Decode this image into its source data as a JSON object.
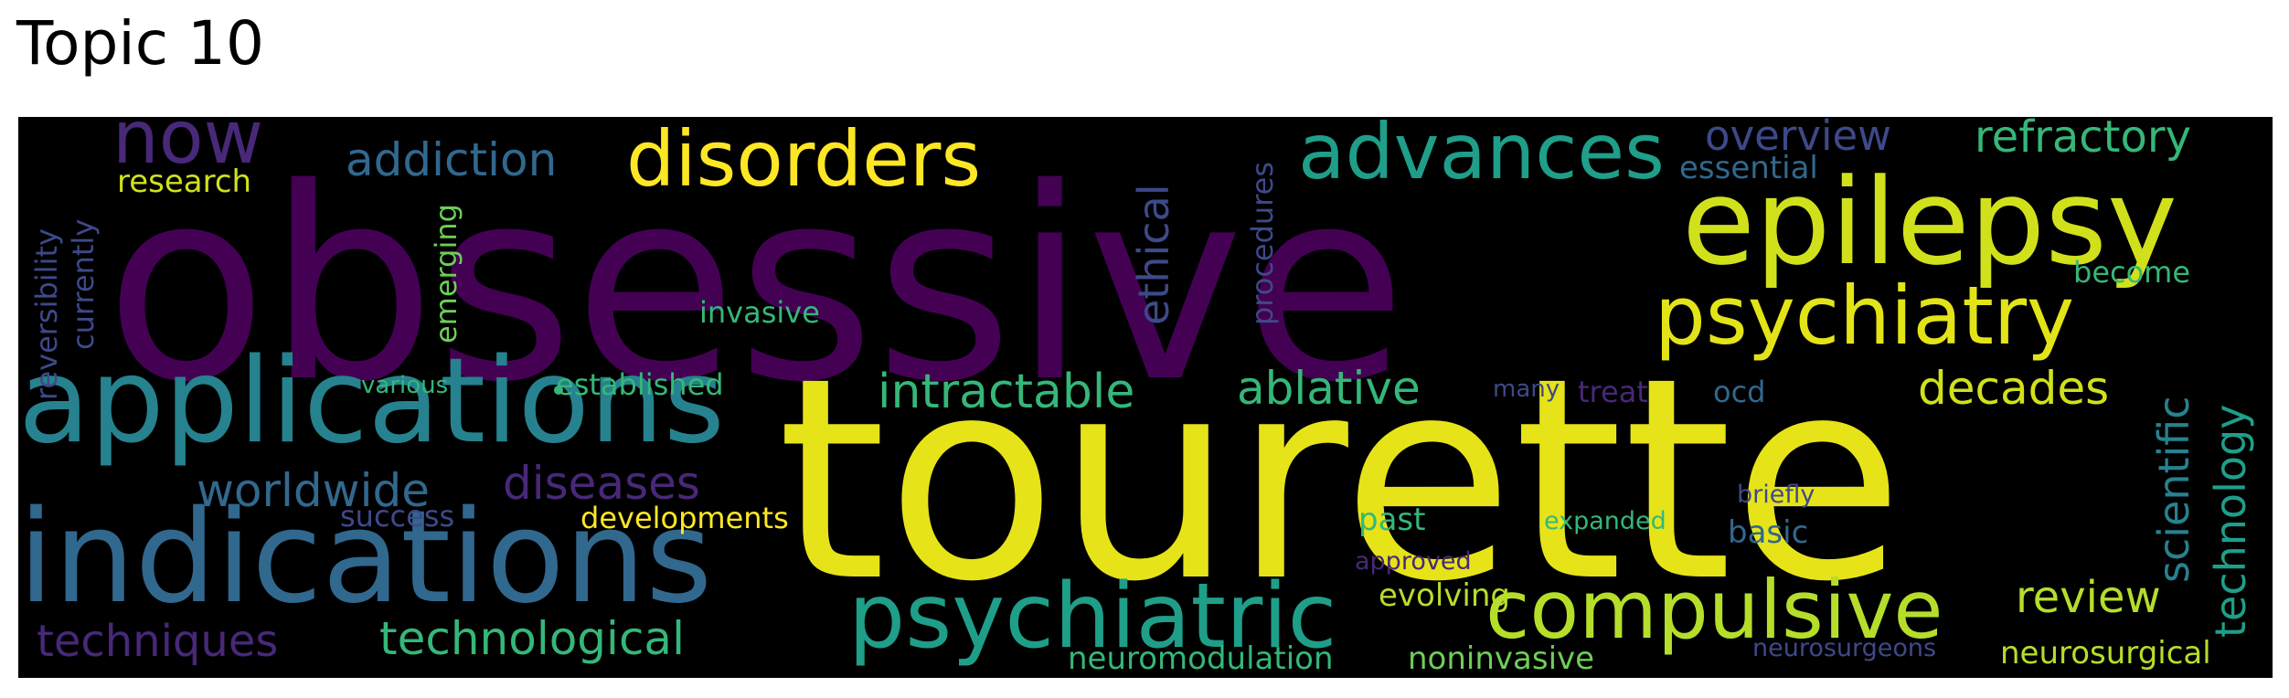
{
  "title": "Topic 10",
  "words": {
    "obsessive": "obsessive",
    "tourette": "tourette",
    "epilepsy": "epilepsy",
    "applications": "applications",
    "indications": "indications",
    "psychiatry": "psychiatry",
    "psychiatric": "psychiatric",
    "compulsive": "compulsive",
    "disorders": "disorders",
    "advances": "advances",
    "now": "now",
    "addiction": "addiction",
    "refractory": "refractory",
    "overview": "overview",
    "essential": "essential",
    "research": "research",
    "reversibility": "reversibility",
    "currently": "currently",
    "emerging": "emerging",
    "ethical": "ethical",
    "procedures": "procedures",
    "invasive": "invasive",
    "become": "become",
    "scientific": "scientific",
    "technology": "technology",
    "various": "various",
    "established": "established",
    "intractable": "intractable",
    "ablative": "ablative",
    "many": "many",
    "treat": "treat",
    "ocd": "ocd",
    "decades": "decades",
    "worldwide": "worldwide",
    "diseases": "diseases",
    "success": "success",
    "developments": "developments",
    "past": "past",
    "expanded": "expanded",
    "basic": "basic",
    "briefly": "briefly",
    "approved": "approved",
    "evolving": "evolving",
    "review": "review",
    "techniques": "techniques",
    "technological": "technological",
    "neuromodulation": "neuromodulation",
    "noninvasive": "noninvasive",
    "neurosurgeons": "neurosurgeons",
    "neurosurgical": "neurosurgical"
  },
  "colors": {
    "background": "#000000",
    "purple_dark": "#440154",
    "purple": "#482878",
    "indigo": "#3e4989",
    "blue": "#31688e",
    "teal_blue": "#26828e",
    "teal": "#1f9e89",
    "green": "#35b779",
    "lime": "#6ece58",
    "yellow_green": "#b5de2b",
    "yellow": "#fde725"
  }
}
